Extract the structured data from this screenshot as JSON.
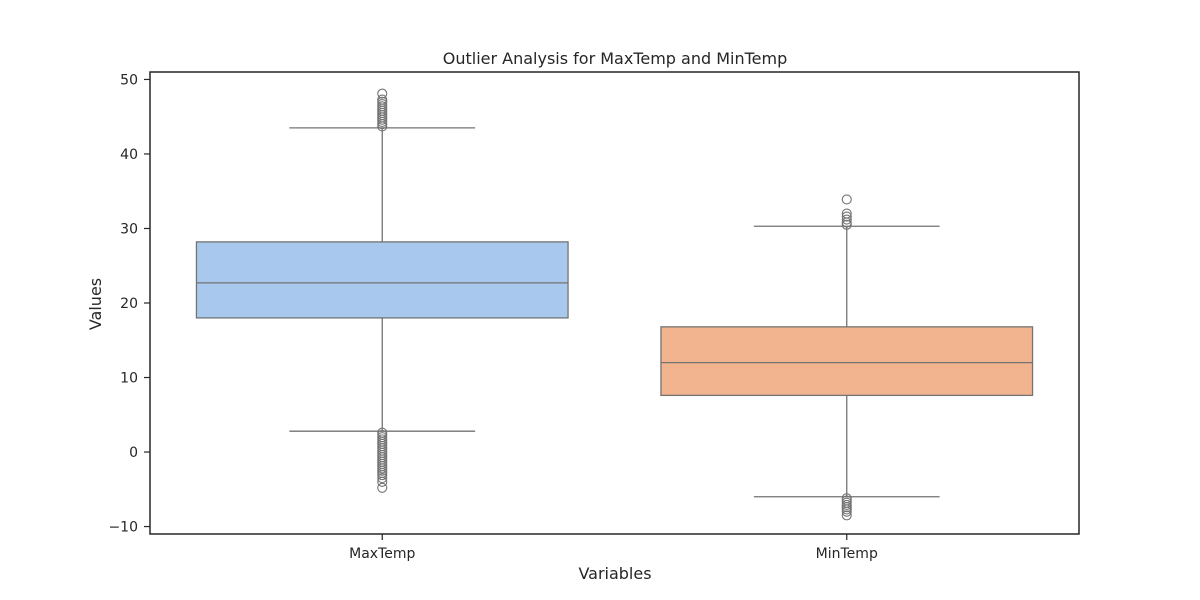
{
  "chart_data": {
    "type": "box",
    "title": "Outlier Analysis for MaxTemp and MinTemp",
    "xlabel": "Variables",
    "ylabel": "Values",
    "ylim": [
      -11,
      51
    ],
    "yticks": [
      -10,
      0,
      10,
      20,
      30,
      40,
      50
    ],
    "ytick_labels": [
      "−10",
      "0",
      "10",
      "20",
      "30",
      "40",
      "50"
    ],
    "grid": false,
    "categories": [
      "MaxTemp",
      "MinTemp"
    ],
    "boxes": [
      {
        "name": "MaxTemp",
        "color": "#a9c8ee",
        "whisker_low": 2.8,
        "q1": 18.0,
        "median": 22.7,
        "q3": 28.2,
        "whisker_high": 43.5,
        "outliers": [
          43.7,
          44.0,
          44.3,
          44.6,
          44.9,
          45.2,
          45.5,
          45.8,
          46.1,
          46.4,
          46.7,
          47.0,
          47.3,
          48.1,
          2.6,
          2.3,
          2.0,
          1.7,
          1.4,
          1.1,
          0.8,
          0.5,
          0.2,
          -0.1,
          -0.4,
          -0.7,
          -1.0,
          -1.3,
          -1.6,
          -1.9,
          -2.2,
          -2.5,
          -2.8,
          -3.1,
          -3.5,
          -4.0,
          -4.8
        ]
      },
      {
        "name": "MinTemp",
        "color": "#f1b48f",
        "whisker_low": -6.0,
        "q1": 7.6,
        "median": 12.0,
        "q3": 16.8,
        "whisker_high": 30.3,
        "outliers": [
          30.5,
          30.8,
          31.2,
          31.6,
          32.0,
          33.9,
          -6.2,
          -6.5,
          -6.8,
          -7.1,
          -7.4,
          -7.7,
          -8.0,
          -8.5
        ]
      }
    ]
  }
}
